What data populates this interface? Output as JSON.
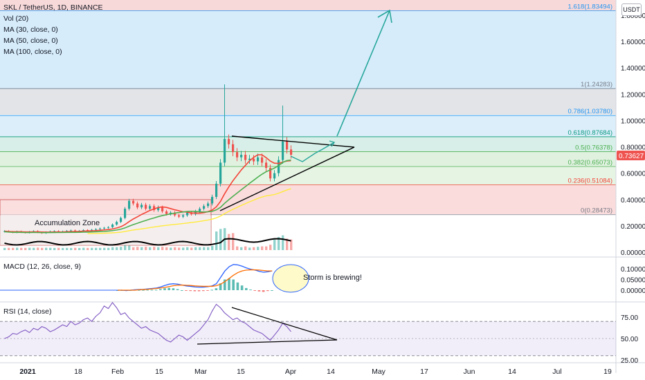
{
  "legend": {
    "symbol": "SKL / TetherUS, 1D, BINANCE",
    "studies": [
      "Vol (20)",
      "MA (30, close, 0)",
      "MA (50, close, 0)",
      "MA (100, close, 0)"
    ]
  },
  "macd_title": "MACD (12, 26, close, 9)",
  "rsi_title": "RSI (14, close)",
  "currency_button": "USDT",
  "current_price": "0.73627",
  "annotations": {
    "accumulation": "Accumulation Zone",
    "storm": "Storm is brewing!"
  },
  "colors": {
    "up": "#26a69a",
    "down": "#ef5350",
    "ma30": "#f44336",
    "ma50": "#4caf50",
    "ma100": "#ffeb3b",
    "trend": "#000000",
    "arrow": "#26a69a",
    "macd": "#2962ff",
    "signal": "#ff6d00",
    "rsi": "#7e57c2",
    "price_badge": "#ef5350"
  },
  "chart_data": [
    {
      "type": "line",
      "panel": "price",
      "ylim": [
        0,
        1.9
      ],
      "y_ticks": [
        "1.80000",
        "1.60000",
        "1.40000",
        "1.20000",
        "1.00000",
        "0.80000",
        "0.60000",
        "0.40000",
        "0.20000",
        "0.00000"
      ],
      "y_tick_values": [
        1.8,
        1.6,
        1.4,
        1.2,
        1.0,
        0.8,
        0.6,
        0.4,
        0.2,
        0.0
      ],
      "fib_levels": [
        {
          "label": "1.618(1.83494)",
          "value": 1.83494,
          "color": "#2196f3"
        },
        {
          "label": "1(1.24283)",
          "value": 1.24283,
          "color": "#787b86"
        },
        {
          "label": "0.786(1.03780)",
          "value": 1.0378,
          "color": "#2196f3"
        },
        {
          "label": "0.618(0.87684)",
          "value": 0.87684,
          "color": "#089981"
        },
        {
          "label": "0.5(0.76378)",
          "value": 0.76378,
          "color": "#4caf50"
        },
        {
          "label": "0.382(0.65073)",
          "value": 0.65073,
          "color": "#4caf50"
        },
        {
          "label": "0.236(0.51084)",
          "value": 0.51084,
          "color": "#f44336"
        },
        {
          "label": "0(0.28473)",
          "value": 0.28473,
          "color": "#787b86"
        }
      ],
      "x_ticks": [
        "2021",
        "18",
        "Feb",
        "15",
        "Mar",
        "15",
        "Apr",
        "14",
        "May",
        "17",
        "Jun",
        "14",
        "Jul",
        "19"
      ],
      "close_series": [
        0.16,
        0.155,
        0.15,
        0.158,
        0.152,
        0.148,
        0.155,
        0.16,
        0.15,
        0.145,
        0.152,
        0.158,
        0.16,
        0.155,
        0.158,
        0.162,
        0.165,
        0.16,
        0.162,
        0.168,
        0.165,
        0.17,
        0.175,
        0.18,
        0.185,
        0.19,
        0.21,
        0.23,
        0.26,
        0.33,
        0.39,
        0.37,
        0.34,
        0.36,
        0.33,
        0.35,
        0.32,
        0.34,
        0.31,
        0.29,
        0.3,
        0.28,
        0.27,
        0.28,
        0.3,
        0.29,
        0.31,
        0.33,
        0.35,
        0.37,
        0.42,
        0.52,
        0.68,
        0.86,
        0.82,
        0.76,
        0.72,
        0.74,
        0.7,
        0.71,
        0.69,
        0.72,
        0.68,
        0.64,
        0.56,
        0.6,
        0.7,
        0.84,
        0.78,
        0.74
      ]
    },
    {
      "type": "line",
      "panel": "macd",
      "y_ticks": [
        "0.10000",
        "0.05000",
        "0.00000"
      ],
      "y_tick_values": [
        0.1,
        0.05,
        0.0
      ],
      "series": [
        {
          "name": "MACD",
          "values": [
            0.0,
            0.0,
            -0.002,
            0.0,
            0.002,
            0.003,
            0.004,
            0.006,
            0.008,
            0.01,
            0.015,
            0.022,
            0.028,
            0.03,
            0.028,
            0.024,
            0.02,
            0.018,
            0.015,
            0.014,
            0.014,
            0.016,
            0.02,
            0.03,
            0.06,
            0.09,
            0.11,
            0.12,
            0.118,
            0.112,
            0.104,
            0.098,
            0.094,
            0.088,
            0.084,
            0.086,
            0.09
          ]
        },
        {
          "name": "Signal",
          "values": [
            0.0,
            0.0,
            0.0,
            0.0,
            0.0,
            0.002,
            0.003,
            0.004,
            0.006,
            0.008,
            0.01,
            0.013,
            0.017,
            0.021,
            0.023,
            0.024,
            0.023,
            0.022,
            0.02,
            0.019,
            0.018,
            0.018,
            0.018,
            0.021,
            0.028,
            0.04,
            0.055,
            0.07,
            0.082,
            0.09,
            0.094,
            0.095,
            0.095,
            0.094,
            0.092,
            0.09,
            0.09
          ]
        }
      ]
    },
    {
      "type": "line",
      "panel": "rsi",
      "y_ticks": [
        "75.00",
        "50.00",
        "25.00"
      ],
      "y_tick_values": [
        75,
        50,
        25
      ],
      "ylim": [
        20,
        100
      ],
      "series": [
        {
          "name": "RSI",
          "values": [
            50,
            52,
            56,
            55,
            58,
            60,
            57,
            62,
            60,
            64,
            62,
            58,
            60,
            63,
            66,
            64,
            70,
            66,
            68,
            72,
            74,
            70,
            76,
            80,
            88,
            85,
            92,
            86,
            78,
            80,
            74,
            70,
            66,
            62,
            64,
            60,
            58,
            56,
            52,
            48,
            46,
            50,
            54,
            52,
            48,
            52,
            56,
            60,
            66,
            72,
            82,
            90,
            86,
            80,
            76,
            72,
            74,
            70,
            68,
            64,
            60,
            58,
            56,
            52,
            48,
            54,
            60,
            68,
            64,
            58
          ]
        }
      ]
    }
  ]
}
